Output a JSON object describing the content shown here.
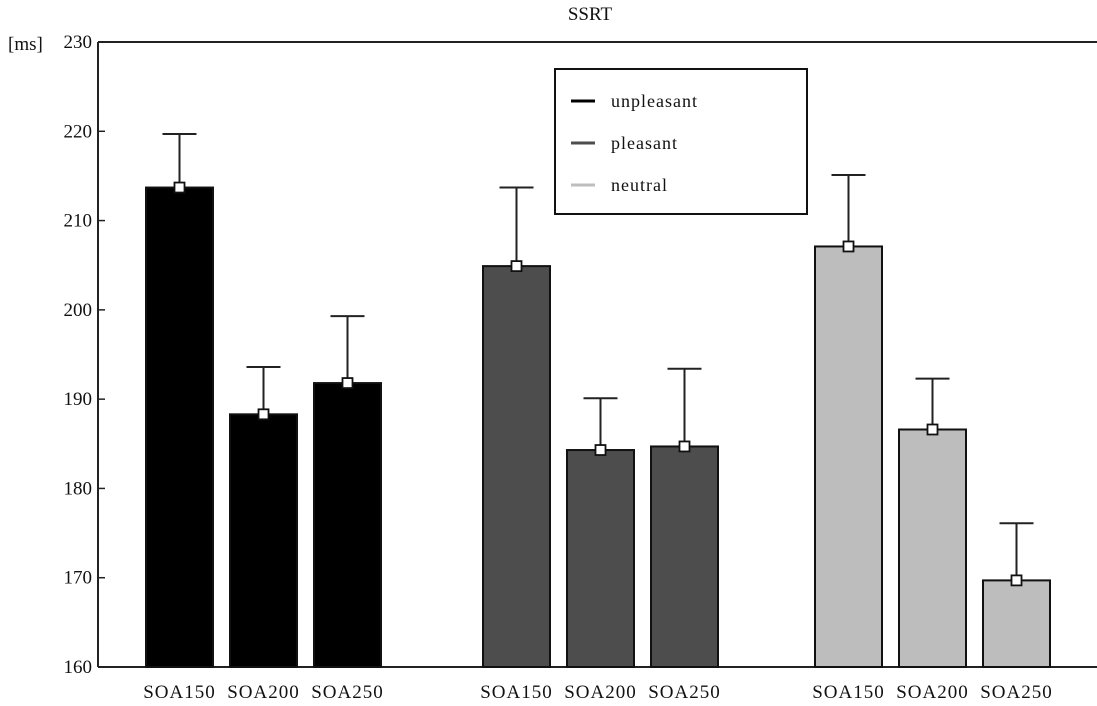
{
  "chart_data": {
    "type": "bar",
    "title": "SSRT",
    "ylabel": "[ms]",
    "ylim": [
      160,
      230
    ],
    "yticks": [
      160,
      170,
      180,
      190,
      200,
      210,
      220,
      230
    ],
    "grid": false,
    "legend_position": "top-center",
    "categories": [
      "SOA150",
      "SOA200",
      "SOA250"
    ],
    "series": [
      {
        "name": "unpleasant",
        "color": "#000000",
        "values": [
          213.7,
          188.3,
          191.8
        ],
        "error": [
          6.0,
          5.3,
          7.5
        ]
      },
      {
        "name": "pleasant",
        "color": "#4d4d4d",
        "values": [
          204.9,
          184.3,
          184.7
        ],
        "error": [
          8.8,
          5.8,
          8.7
        ]
      },
      {
        "name": "neutral",
        "color": "#bdbdbd",
        "values": [
          207.1,
          186.6,
          169.7
        ],
        "error": [
          8.0,
          5.7,
          6.4
        ]
      }
    ]
  }
}
